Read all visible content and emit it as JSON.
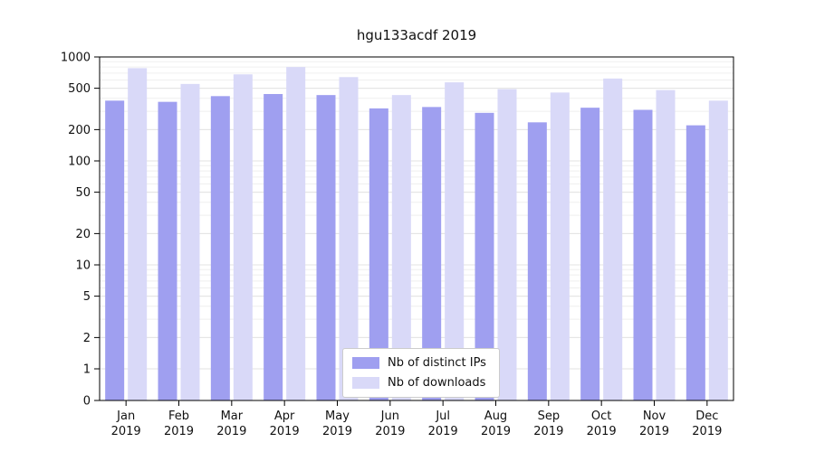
{
  "chart_data": {
    "type": "bar",
    "title": "hgu133acdf 2019",
    "categories": [
      "Jan",
      "Feb",
      "Mar",
      "Apr",
      "May",
      "Jun",
      "Jul",
      "Aug",
      "Sep",
      "Oct",
      "Nov",
      "Dec"
    ],
    "year_label": "2019",
    "yscale": "symlog",
    "ylim": [
      0,
      1000
    ],
    "yticks": [
      0,
      1,
      2,
      5,
      10,
      20,
      50,
      100,
      200,
      500,
      1000
    ],
    "grid": true,
    "legend_position": "bottom-center",
    "series": [
      {
        "name": "Nb of distinct IPs",
        "color": "#9f9ff0",
        "values": [
          380,
          370,
          420,
          440,
          430,
          320,
          330,
          290,
          235,
          325,
          310,
          220
        ]
      },
      {
        "name": "Nb of downloads",
        "color": "#d9d9f8",
        "values": [
          780,
          550,
          680,
          800,
          640,
          430,
          570,
          490,
          455,
          620,
          480,
          380
        ]
      }
    ]
  }
}
